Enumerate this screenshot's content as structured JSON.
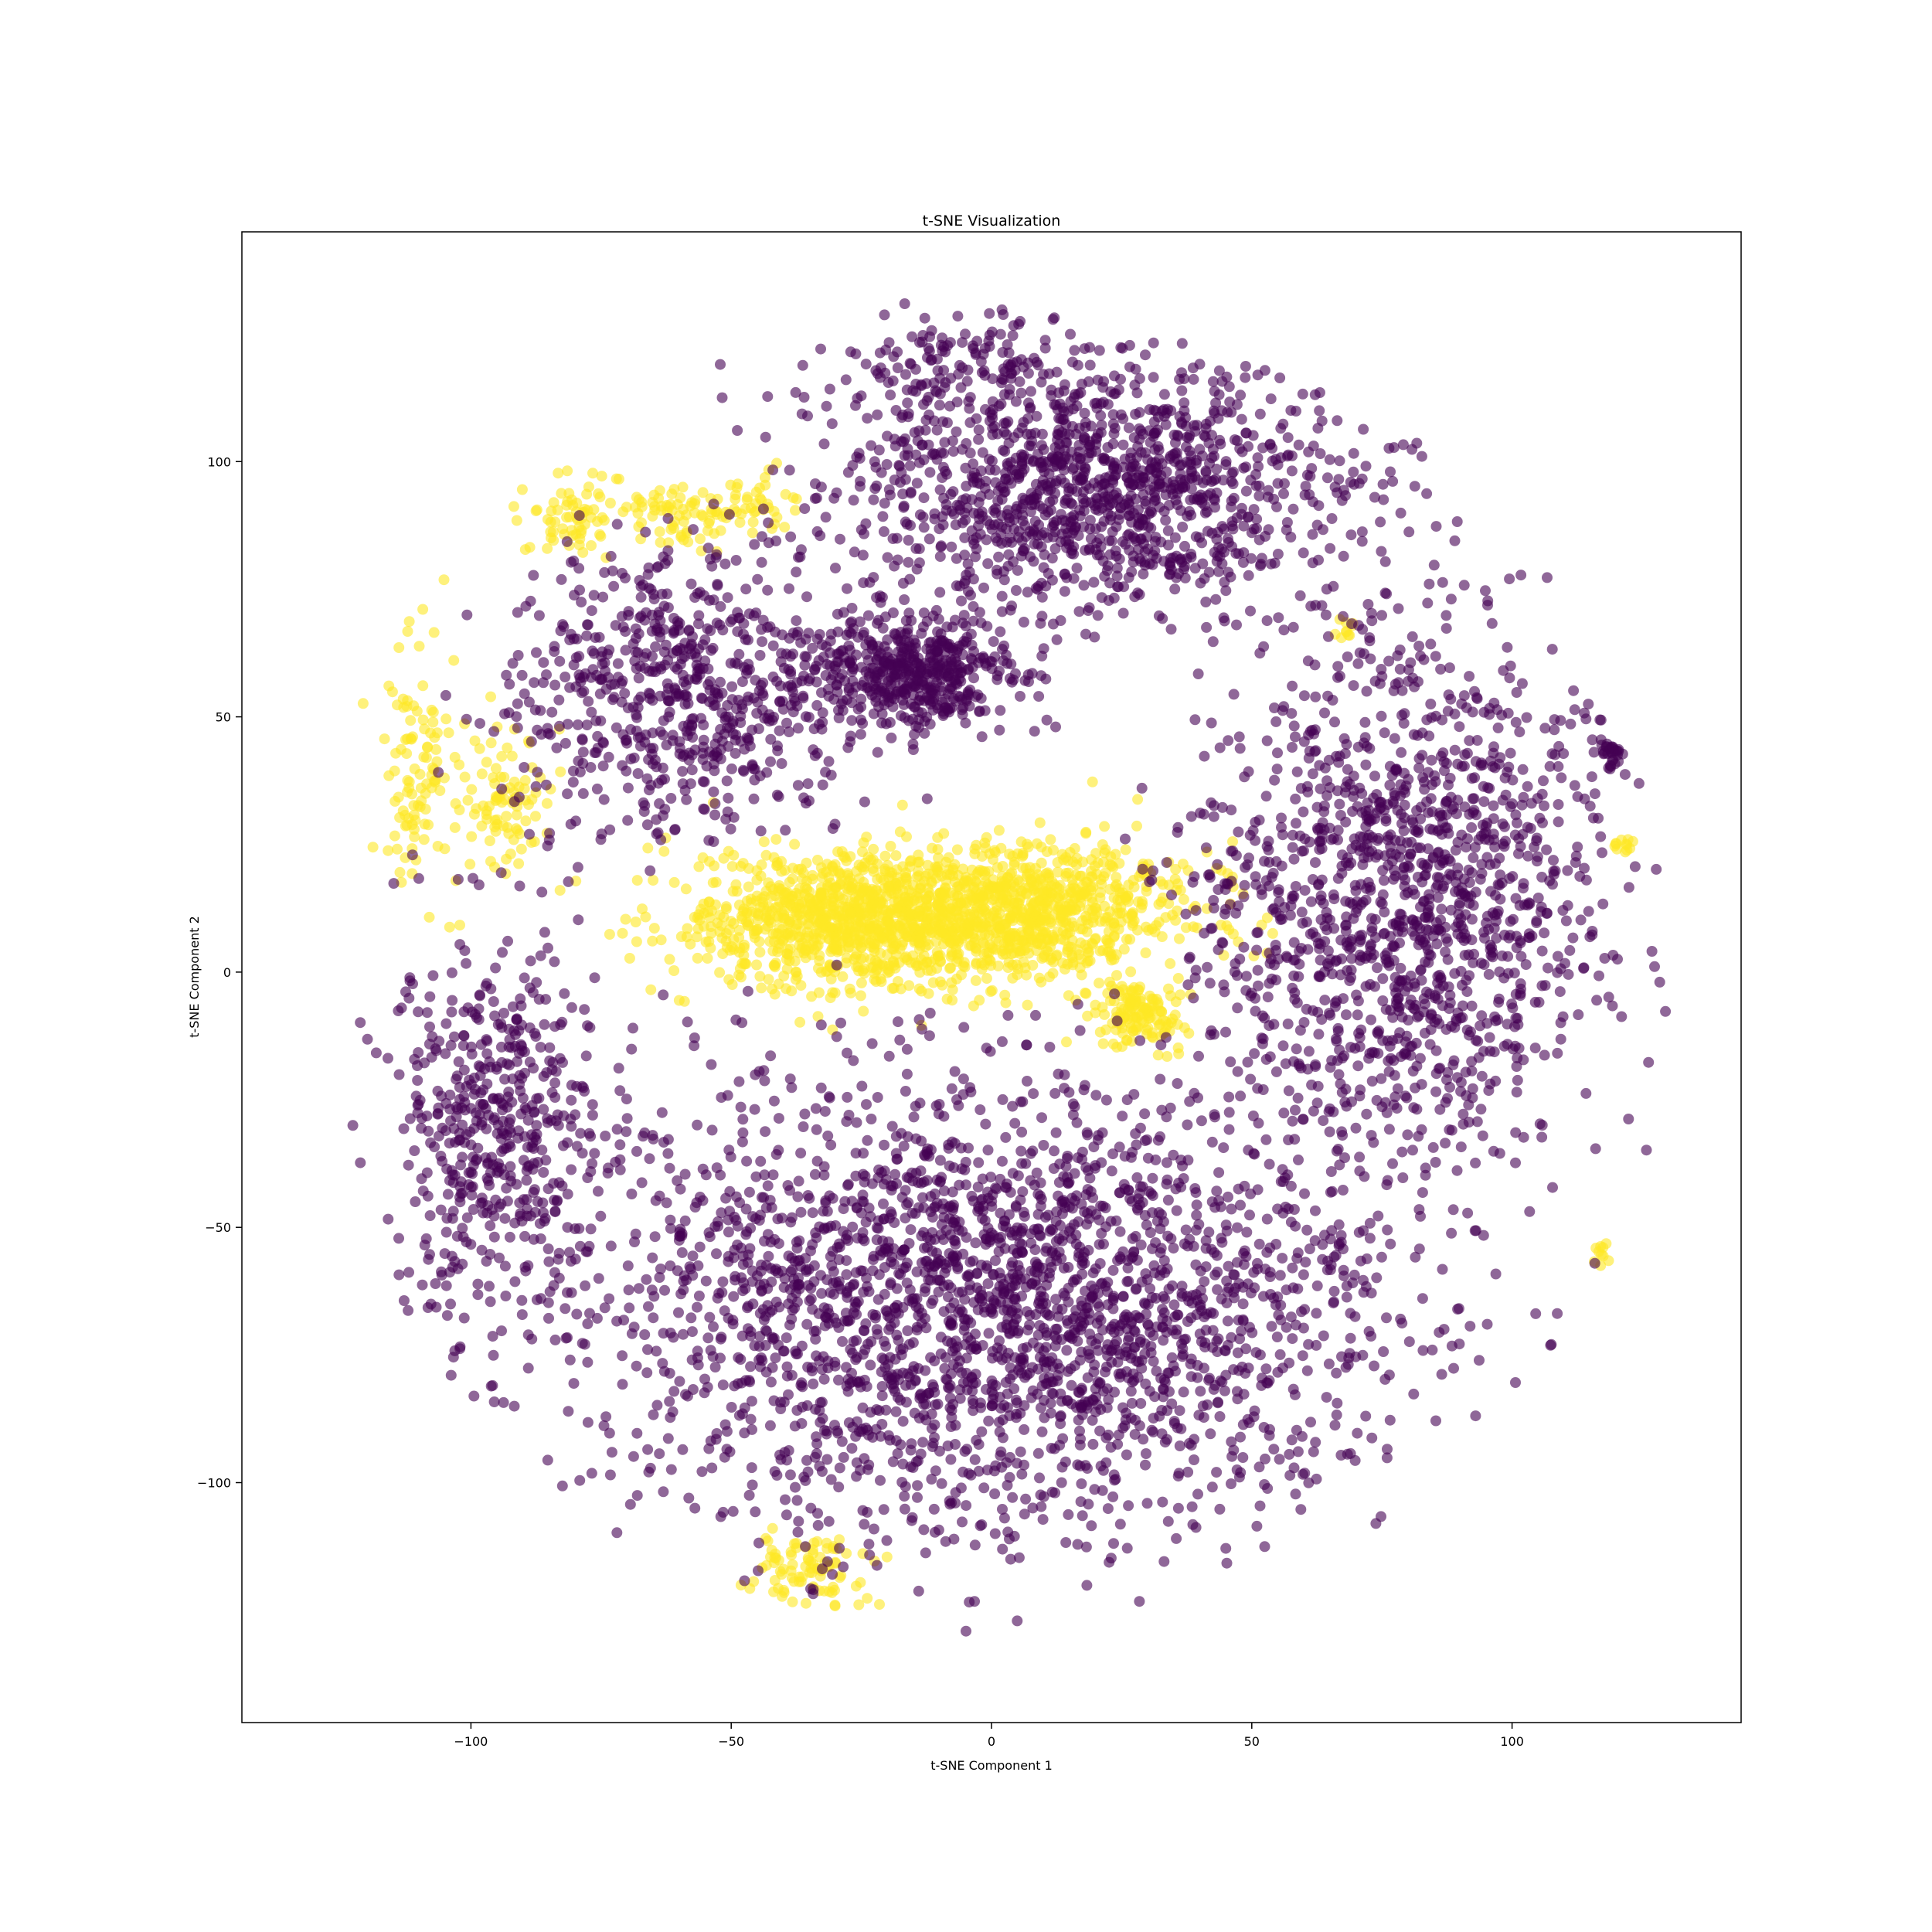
{
  "chart_data": {
    "type": "scatter",
    "title": "t-SNE Visualization",
    "xlabel": "t-SNE Component 1",
    "ylabel": "t-SNE Component 2",
    "xlim": [
      -144,
      144
    ],
    "ylim": [
      -147,
      145
    ],
    "xticks": [
      -100,
      -50,
      0,
      50,
      100
    ],
    "xtick_labels": [
      "−100",
      "−50",
      "0",
      "50",
      "100"
    ],
    "yticks": [
      -100,
      -50,
      0,
      50,
      100
    ],
    "ytick_labels": [
      "−100",
      "−50",
      "0",
      "50",
      "100"
    ],
    "grid": false,
    "legend": false,
    "marker_alpha": 0.6,
    "classes": [
      {
        "color": "#440154"
      },
      {
        "color": "#fde725"
      }
    ],
    "clusters": [
      {
        "class": 1,
        "center": [
          -28,
          10
        ],
        "spread": [
          30,
          12
        ],
        "count": 900
      },
      {
        "class": 1,
        "center": [
          5,
          12
        ],
        "spread": [
          30,
          12
        ],
        "count": 900
      },
      {
        "class": 1,
        "center": [
          28,
          -8
        ],
        "spread": [
          8,
          6
        ],
        "count": 140
      },
      {
        "class": 1,
        "center": [
          -80,
          90
        ],
        "spread": [
          9,
          8
        ],
        "count": 70
      },
      {
        "class": 1,
        "center": [
          -60,
          90
        ],
        "spread": [
          9,
          6
        ],
        "count": 70
      },
      {
        "class": 1,
        "center": [
          -45,
          92
        ],
        "spread": [
          6,
          5
        ],
        "count": 40
      },
      {
        "class": 1,
        "center": [
          -110,
          40
        ],
        "spread": [
          7,
          25
        ],
        "count": 110
      },
      {
        "class": 1,
        "center": [
          -93,
          35
        ],
        "spread": [
          8,
          12
        ],
        "count": 90
      },
      {
        "class": 1,
        "center": [
          -35,
          -117
        ],
        "spread": [
          9,
          6
        ],
        "count": 90
      },
      {
        "class": 1,
        "center": [
          121,
          25
        ],
        "spread": [
          2,
          2
        ],
        "count": 12
      },
      {
        "class": 1,
        "center": [
          117,
          -56
        ],
        "spread": [
          2,
          3
        ],
        "count": 10
      },
      {
        "class": 1,
        "center": [
          68,
          67
        ],
        "spread": [
          2,
          2
        ],
        "count": 10
      },
      {
        "class": 0,
        "center": [
          -15,
          58
        ],
        "spread": [
          18,
          10
        ],
        "count": 500
      },
      {
        "class": 0,
        "center": [
          0,
          -65
        ],
        "spread": [
          70,
          40
        ],
        "count": 2600
      },
      {
        "class": 0,
        "center": [
          80,
          15
        ],
        "spread": [
          35,
          45
        ],
        "count": 1400
      },
      {
        "class": 0,
        "center": [
          20,
          95
        ],
        "spread": [
          45,
          22
        ],
        "count": 1300
      },
      {
        "class": 0,
        "center": [
          -60,
          55
        ],
        "spread": [
          28,
          25
        ],
        "count": 650
      },
      {
        "class": 0,
        "center": [
          -95,
          -30
        ],
        "spread": [
          18,
          35
        ],
        "count": 500
      },
      {
        "class": 0,
        "center": [
          119,
          43
        ],
        "spread": [
          2,
          3
        ],
        "count": 30
      },
      {
        "class": 0,
        "center": [
          -5,
          120
        ],
        "spread": [
          25,
          8
        ],
        "count": 120
      }
    ]
  }
}
